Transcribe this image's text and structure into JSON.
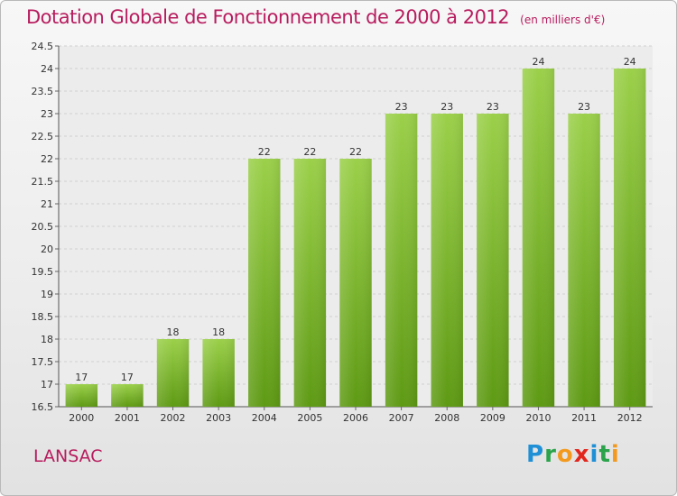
{
  "header": {
    "title": "Dotation Globale de Fonctionnement de 2000 à 2012",
    "subtitle": "(en milliers d'€)"
  },
  "footer": {
    "commune": "LANSAC",
    "logo_letters": [
      "P",
      "r",
      "o",
      "x",
      "i",
      "t",
      "i"
    ]
  },
  "colors": {
    "bar_top": "#9bd04a",
    "bar_bottom": "#5e9a14",
    "title": "#b71c5e"
  },
  "chart_data": {
    "type": "bar",
    "title": "Dotation Globale de Fonctionnement de 2000 à 2012",
    "subtitle": "(en milliers d'€)",
    "xlabel": "",
    "ylabel": "",
    "categories": [
      "2000",
      "2001",
      "2002",
      "2003",
      "2004",
      "2005",
      "2006",
      "2007",
      "2008",
      "2009",
      "2010",
      "2011",
      "2012"
    ],
    "values": [
      17,
      17,
      18,
      18,
      22,
      22,
      22,
      23,
      23,
      23,
      24,
      23,
      24
    ],
    "ylim": [
      16.5,
      24.5
    ],
    "yticks": [
      16.5,
      17,
      17.5,
      18,
      18.5,
      19,
      19.5,
      20,
      20.5,
      21,
      21.5,
      22,
      22.5,
      23,
      23.5,
      24,
      24.5
    ],
    "grid": true
  }
}
